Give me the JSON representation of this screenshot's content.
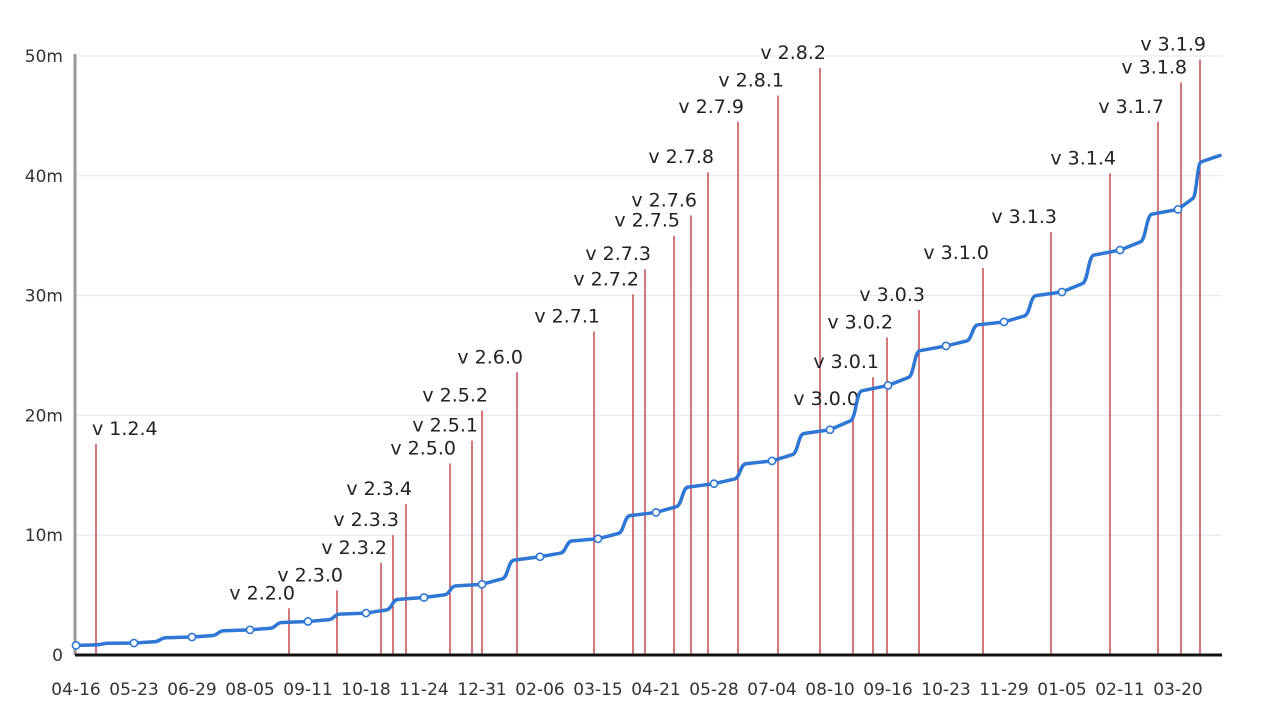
{
  "chart_data": {
    "type": "line",
    "title": "",
    "xlabel": "",
    "ylabel": "",
    "ylim": [
      0,
      50
    ],
    "y_ticks": [
      {
        "value": 0,
        "label": "0"
      },
      {
        "value": 10,
        "label": "10m"
      },
      {
        "value": 20,
        "label": "20m"
      },
      {
        "value": 30,
        "label": "30m"
      },
      {
        "value": 40,
        "label": "40m"
      },
      {
        "value": 50,
        "label": "50m"
      }
    ],
    "x_tick_labels": [
      "04-16",
      "05-23",
      "06-29",
      "08-05",
      "09-11",
      "10-18",
      "11-24",
      "12-31",
      "02-06",
      "03-15",
      "04-21",
      "05-28",
      "07-04",
      "08-10",
      "09-16",
      "10-23",
      "11-29",
      "01-05",
      "02-11",
      "03-20"
    ],
    "grid": true,
    "colors": {
      "line": "#2f77d4",
      "release_line": "#b81d24",
      "axis": "#111111",
      "left_axis": "#999999",
      "grid": "#e6e6e6"
    },
    "series": [
      {
        "values": [
          {
            "x": "04-16",
            "y": 0.8
          },
          {
            "x": "05-23",
            "y": 1.0
          },
          {
            "x": "06-29",
            "y": 1.5
          },
          {
            "x": "08-05",
            "y": 2.1
          },
          {
            "x": "09-11",
            "y": 2.8
          },
          {
            "x": "10-18",
            "y": 3.5
          },
          {
            "x": "11-24",
            "y": 4.8
          },
          {
            "x": "12-31",
            "y": 5.9
          },
          {
            "x": "02-06",
            "y": 8.2
          },
          {
            "x": "03-15",
            "y": 9.7
          },
          {
            "x": "04-21",
            "y": 11.9
          },
          {
            "x": "05-28",
            "y": 14.3
          },
          {
            "x": "07-04",
            "y": 16.2
          },
          {
            "x": "08-10",
            "y": 18.8
          },
          {
            "x": "09-16",
            "y": 22.5
          },
          {
            "x": "10-23",
            "y": 25.8
          },
          {
            "x": "11-29",
            "y": 27.8
          },
          {
            "x": "01-05",
            "y": 30.3
          },
          {
            "x": "02-11",
            "y": 33.8
          },
          {
            "x": "03-20",
            "y": 37.2
          },
          {
            "y": 41.7
          }
        ]
      }
    ],
    "releases": [
      {
        "label": "v 1.2.4",
        "height": 17.6
      },
      {
        "label": "v 2.2.0",
        "height": 3.9
      },
      {
        "label": "v 2.3.0",
        "height": 5.4
      },
      {
        "label": "v 2.3.2",
        "height": 7.7
      },
      {
        "label": "v 2.3.3",
        "height": 10.0
      },
      {
        "label": "v 2.3.4",
        "height": 12.6
      },
      {
        "label": "v 2.5.0",
        "height": 16.0
      },
      {
        "label": "v 2.5.1",
        "height": 17.9
      },
      {
        "label": "v 2.5.2",
        "height": 20.4
      },
      {
        "label": "v 2.6.0",
        "height": 23.6
      },
      {
        "label": "v 2.7.1",
        "height": 27.0
      },
      {
        "label": "v 2.7.2",
        "height": 30.1
      },
      {
        "label": "v 2.7.3",
        "height": 32.2
      },
      {
        "label": "v 2.7.5",
        "height": 35.0
      },
      {
        "label": "v 2.7.6",
        "height": 36.7
      },
      {
        "label": "v 2.7.8",
        "height": 40.3
      },
      {
        "label": "v 2.7.9",
        "height": 44.5
      },
      {
        "label": "v 2.8.1",
        "height": 46.7
      },
      {
        "label": "v 2.8.2",
        "height": 49.0
      },
      {
        "label": "v 3.0.0",
        "height": 20.1
      },
      {
        "label": "v 3.0.1",
        "height": 23.2
      },
      {
        "label": "v 3.0.2",
        "height": 26.5
      },
      {
        "label": "v 3.0.3",
        "height": 28.8
      },
      {
        "label": "v 3.1.0",
        "height": 32.3
      },
      {
        "label": "v 3.1.3",
        "height": 35.3
      },
      {
        "label": "v 3.1.4",
        "height": 40.2
      },
      {
        "label": "v 3.1.7",
        "height": 44.5
      },
      {
        "label": "v 3.1.8",
        "height": 47.8
      },
      {
        "label": "v 3.1.9",
        "height": 49.7
      }
    ]
  }
}
